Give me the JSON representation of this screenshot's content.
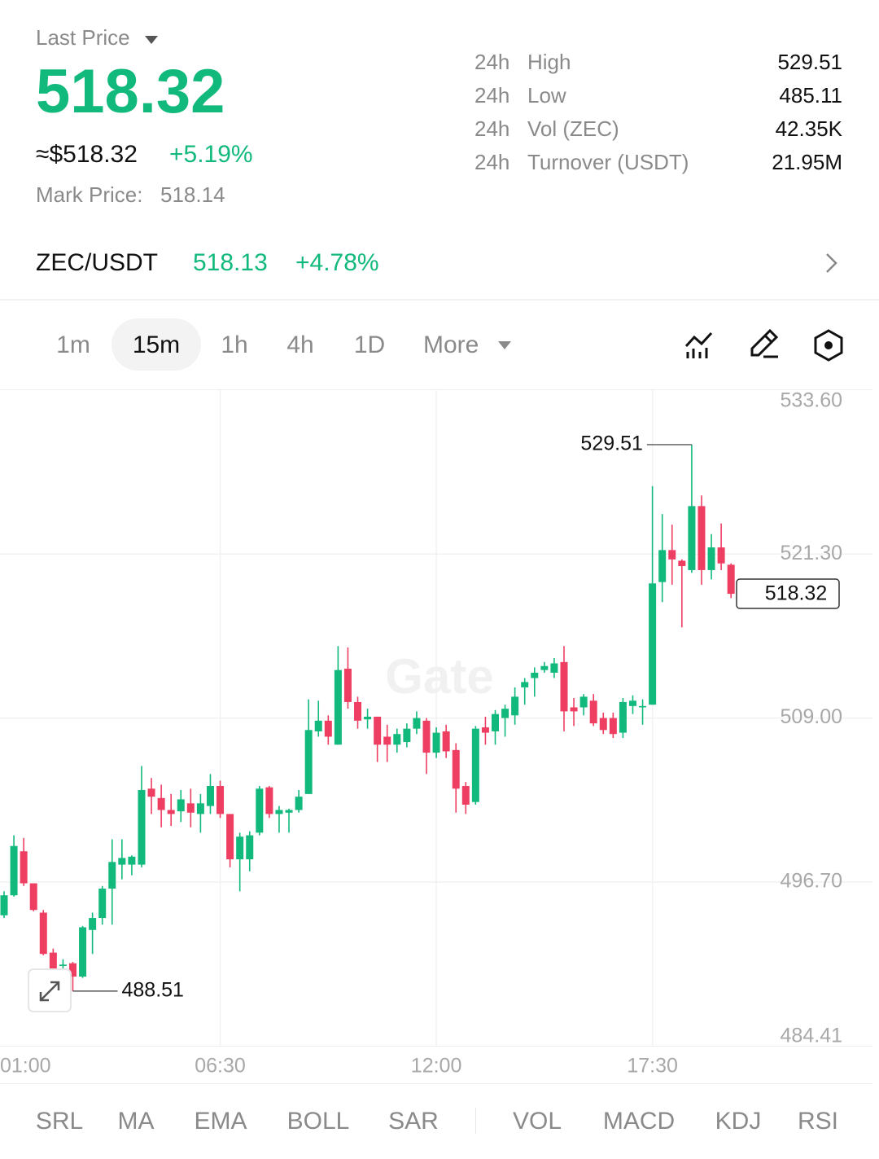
{
  "header": {
    "title": "Last Price",
    "price": "518.32",
    "usd_price": "≈$518.32",
    "change": "+5.19%",
    "mark_label": "Mark Price:",
    "mark_price": "518.14"
  },
  "stats": [
    {
      "period": "24h",
      "label": "High",
      "value": "529.51"
    },
    {
      "period": "24h",
      "label": "Low",
      "value": "485.11"
    },
    {
      "period": "24h",
      "label": "Vol (ZEC)",
      "value": "42.35K"
    },
    {
      "period": "24h",
      "label": "Turnover (USDT)",
      "value": "21.95M"
    }
  ],
  "pair": {
    "symbol": "ZEC/USDT",
    "price": "518.13",
    "change": "+4.78%"
  },
  "timeframes": [
    "1m",
    "15m",
    "1h",
    "4h",
    "1D",
    "More"
  ],
  "selected_timeframe": "15m",
  "indicators": [
    "SRL",
    "MA",
    "EMA",
    "BOLL",
    "SAR",
    "VOL",
    "MACD",
    "KDJ",
    "RSI"
  ],
  "chart_data": {
    "type": "candlestick",
    "watermark": "Gate",
    "up_color": "#12b97c",
    "down_color": "#ee3f63",
    "open": [
      494.2,
      495.7,
      499.0,
      496.6,
      494.4,
      491.4,
      490.4,
      490.6,
      489.6,
      493.1,
      494.0,
      496.2,
      498.0,
      498.0,
      498.0,
      503.7,
      503.0,
      502.1,
      502.0,
      502.6,
      501.8,
      502.4,
      503.9,
      501.8,
      498.4,
      498.4,
      500.4,
      503.8,
      501.8,
      501.9,
      502.1,
      503.3,
      508.0,
      508.8,
      507.0,
      512.7,
      510.2,
      508.9,
      509.1,
      507.6,
      507.0,
      507.2,
      508.2,
      508.8,
      506.4,
      508.0,
      506.6,
      503.9,
      502.7,
      508.3,
      508.0,
      509.0,
      509.2,
      511.3,
      512.0,
      512.6,
      512.4,
      513.2,
      509.8,
      509.8,
      510.3,
      509.0,
      509.0,
      507.9,
      509.9,
      509.8,
      510.0,
      519.2,
      521.6,
      520.8,
      520.1,
      524.9,
      520.1,
      521.8,
      520.5
    ],
    "high": [
      496.0,
      500.2,
      500.0,
      496.6,
      494.6,
      491.7,
      490.9,
      490.7,
      493.4,
      494.4,
      496.4,
      499.9,
      499.9,
      498.7,
      505.4,
      504.5,
      504.0,
      503.3,
      503.6,
      503.7,
      503.3,
      504.8,
      504.3,
      501.8,
      500.4,
      500.5,
      503.9,
      503.9,
      502.4,
      502.2,
      503.6,
      510.4,
      510.3,
      509.2,
      514.4,
      514.3,
      510.6,
      509.7,
      509.1,
      508.5,
      508.2,
      508.6,
      509.5,
      509.0,
      508.3,
      508.5,
      507.1,
      504.2,
      508.4,
      509.1,
      509.6,
      510.0,
      511.3,
      512.0,
      512.8,
      513.2,
      513.5,
      514.4,
      510.5,
      510.8,
      510.8,
      509.4,
      509.4,
      510.5,
      510.7,
      510.4,
      526.4,
      524.3,
      523.5,
      520.9,
      529.51,
      525.7,
      522.8,
      523.6,
      520.6
    ],
    "low": [
      494.0,
      495.6,
      496.4,
      494.5,
      491.2,
      489.6,
      489.9,
      488.51,
      489.5,
      491.3,
      493.5,
      493.5,
      496.9,
      497.2,
      497.8,
      501.8,
      500.8,
      500.9,
      501.2,
      500.8,
      500.4,
      501.8,
      501.5,
      497.8,
      496.0,
      497.5,
      500.2,
      501.5,
      500.4,
      500.4,
      501.9,
      503.3,
      507.6,
      507.0,
      507.0,
      509.7,
      508.2,
      508.2,
      505.7,
      505.7,
      506.4,
      506.8,
      507.8,
      504.8,
      506.0,
      506.0,
      501.9,
      501.8,
      502.5,
      507.0,
      507.0,
      507.6,
      508.5,
      510.0,
      510.6,
      512.4,
      512.0,
      508.0,
      508.4,
      509.2,
      508.4,
      507.8,
      507.5,
      507.5,
      509.3,
      508.5,
      510.0,
      517.7,
      519.0,
      515.8,
      519.9,
      519.0,
      519.4,
      520.1,
      518.0
    ],
    "close": [
      495.7,
      499.4,
      496.6,
      494.6,
      491.3,
      490.2,
      490.5,
      489.6,
      493.3,
      494.0,
      496.2,
      498.2,
      498.5,
      498.6,
      503.6,
      503.1,
      502.1,
      501.8,
      502.9,
      501.9,
      502.6,
      503.9,
      501.8,
      498.4,
      500.1,
      500.2,
      503.7,
      501.8,
      502.1,
      502.1,
      503.1,
      508.1,
      508.8,
      507.6,
      512.6,
      510.2,
      508.8,
      509.1,
      507.0,
      507.0,
      507.8,
      508.2,
      509.0,
      506.4,
      507.9,
      506.5,
      503.7,
      502.5,
      508.2,
      507.9,
      509.3,
      509.7,
      510.6,
      511.7,
      512.4,
      512.9,
      513.1,
      509.5,
      509.5,
      510.6,
      508.6,
      508.1,
      507.8,
      510.2,
      510.3,
      509.9,
      519.1,
      521.6,
      520.9,
      520.4,
      524.9,
      520.1,
      521.8,
      520.6,
      518.32
    ],
    "ylim": [
      484.41,
      533.6
    ],
    "yticks": [
      {
        "value": 533.6,
        "label": "533.60"
      },
      {
        "value": 521.3,
        "label": "521.30"
      },
      {
        "value": 509,
        "label": "509.00"
      },
      {
        "value": 496.7,
        "label": "496.70"
      },
      484.41
    ],
    "xticks": [
      {
        "value": 0,
        "label": "01:00"
      },
      {
        "value": 22,
        "label": "06:30"
      },
      {
        "value": 44,
        "label": "12:00"
      },
      {
        "value": 66,
        "label": "17:30"
      }
    ],
    "grid": true,
    "max_price": 529.51,
    "min_price": 488.51,
    "last_price": 518.32
  }
}
